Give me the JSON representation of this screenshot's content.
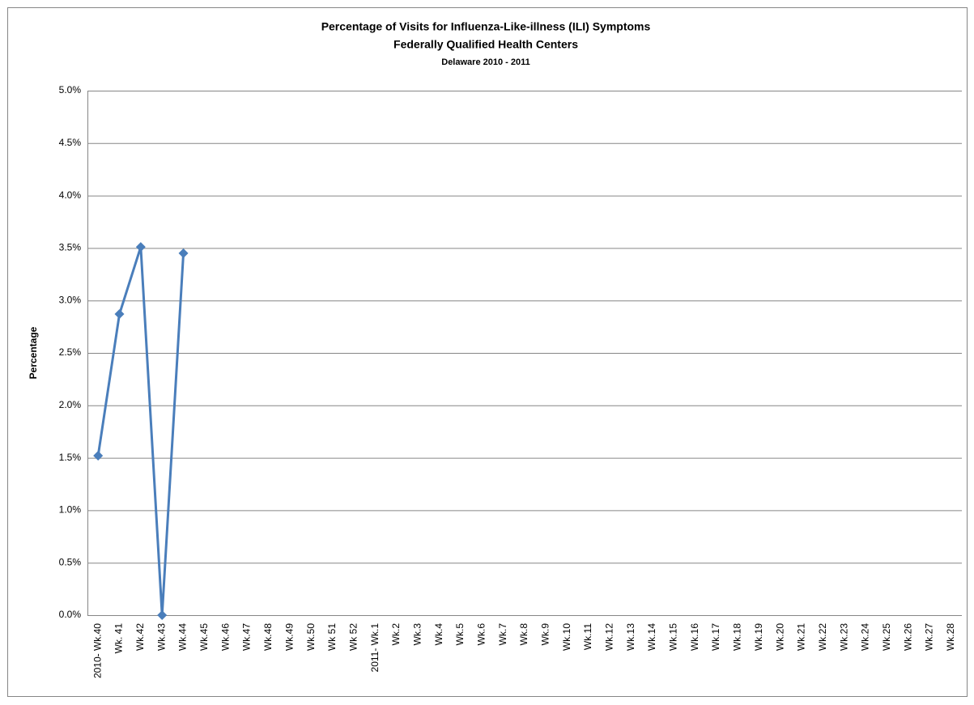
{
  "chart_data": {
    "type": "line",
    "title": "Percentage  of Visits for Influenza-Like-illness (ILI) Symptoms",
    "subtitle": "Federally Qualified Health Centers",
    "subtitle2": "Delaware 2010 - 2011",
    "ylabel": "Percentage",
    "categories": [
      "2010- Wk.40",
      "Wk. 41",
      "Wk.42",
      "Wk.43",
      "Wk.44",
      "Wk.45",
      "Wk.46",
      "Wk.47",
      "Wk.48",
      "Wk.49",
      "Wk.50",
      "Wk 51",
      "Wk 52",
      "2011- Wk.1",
      "Wk.2",
      "Wk.3",
      "Wk.4",
      "Wk.5",
      "Wk.6",
      "Wk.7",
      "Wk.8",
      "Wk.9",
      "Wk.10",
      "Wk.11",
      "Wk.12",
      "Wk.13",
      "Wk.14",
      "Wk.15",
      "Wk.16",
      "Wk.17",
      "Wk.18",
      "Wk.19",
      "Wk.20",
      "Wk.21",
      "Wk.22",
      "Wk.23",
      "Wk.24",
      "Wk.25",
      "Wk.26",
      "Wk.27",
      "Wk.28"
    ],
    "series": [
      {
        "color": "#4a7ebb",
        "values": [
          1.52,
          2.87,
          3.51,
          0,
          3.45,
          null,
          null,
          null,
          null,
          null,
          null,
          null,
          null,
          null,
          null,
          null,
          null,
          null,
          null,
          null,
          null,
          null,
          null,
          null,
          null,
          null,
          null,
          null,
          null,
          null,
          null,
          null,
          null,
          null,
          null,
          null,
          null,
          null,
          null,
          null,
          null
        ]
      }
    ],
    "ylim": [
      0,
      5
    ],
    "yticks": [
      {
        "value": 0,
        "label": "0.0%"
      },
      {
        "value": 0.5,
        "label": "0.5%"
      },
      {
        "value": 1,
        "label": "1.0%"
      },
      {
        "value": 1.5,
        "label": "1.5%"
      },
      {
        "value": 2,
        "label": "2.0%"
      },
      {
        "value": 2.5,
        "label": "2.5%"
      },
      {
        "value": 3,
        "label": "3.0%"
      },
      {
        "value": 3.5,
        "label": "3.5%"
      },
      {
        "value": 4,
        "label": "4.0%"
      },
      {
        "value": 4.5,
        "label": "4.5%"
      },
      {
        "value": 5,
        "label": "5.0%"
      }
    ],
    "grid": true
  }
}
